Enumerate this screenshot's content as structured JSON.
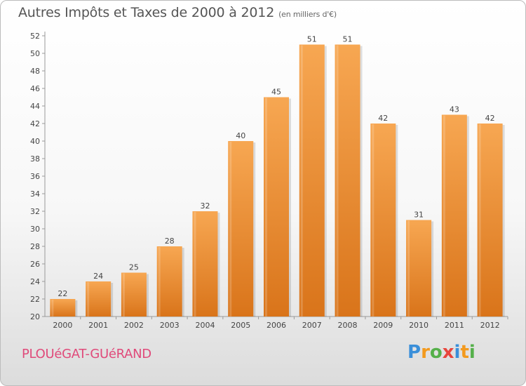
{
  "header": {
    "title": "Autres Impôts et Taxes de 2000 à 2012",
    "unit": "(en milliers d'€)"
  },
  "footer": {
    "place": "PLOUéGAT-GUéRAND",
    "logo": [
      {
        "ch": "P",
        "color": "#3a8fd9"
      },
      {
        "ch": "r",
        "color": "#f39a1e"
      },
      {
        "ch": "o",
        "color": "#55b04a"
      },
      {
        "ch": "x",
        "color": "#e8453c"
      },
      {
        "ch": "i",
        "color": "#3a8fd9"
      },
      {
        "ch": "t",
        "color": "#f39a1e"
      },
      {
        "ch": "i",
        "color": "#55b04a"
      }
    ]
  },
  "chart_data": {
    "type": "bar",
    "categories": [
      "2000",
      "2001",
      "2002",
      "2003",
      "2004",
      "2005",
      "2006",
      "2007",
      "2008",
      "2009",
      "2010",
      "2011",
      "2012"
    ],
    "values": [
      22,
      24,
      25,
      28,
      32,
      40,
      45,
      51,
      51,
      42,
      31,
      43,
      42
    ],
    "data_labels": [
      "22",
      "24",
      "25",
      "28",
      "32",
      "40",
      "45",
      "51",
      "51",
      "42",
      "31",
      "43",
      "42"
    ],
    "ylim": [
      20,
      52
    ],
    "yticks": [
      "20",
      "22",
      "24",
      "26",
      "28",
      "30",
      "32",
      "34",
      "36",
      "38",
      "40",
      "42",
      "44",
      "46",
      "48",
      "50",
      "52"
    ],
    "grid": false,
    "bar_color": "#f0922e",
    "bar_color_light": "#f7a752",
    "bar_color_dark": "#d9741a"
  }
}
